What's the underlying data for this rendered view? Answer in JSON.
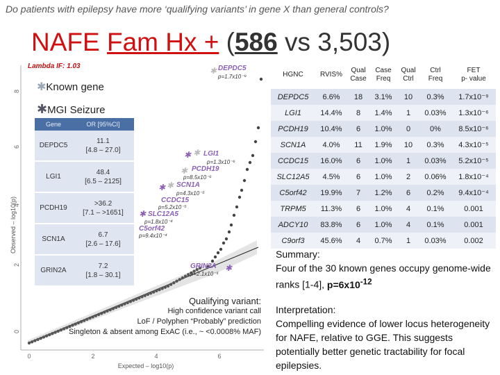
{
  "question": "Do patients with epilepsy have more ‘qualifying variants’ in gene X than general controls?",
  "title": {
    "nafe": "NAFE",
    "famhx": "Fam Hx +",
    "open": " (",
    "n1": "586",
    "vs": " vs 3,503)"
  },
  "plot": {
    "lambda": "Lambda IF: 1.03",
    "xlabel": "Expected – log10(p)",
    "ylabel": "Observed – log10(p)",
    "xticks": [
      "0",
      "2",
      "4",
      "6"
    ],
    "yticks": [
      "0",
      "2",
      "4",
      "6",
      "8"
    ],
    "legend_known": "Known gene",
    "legend_mgi": "MGI Seizure",
    "labels": [
      {
        "gene": "DEPDC5",
        "p": "p=1.7x10⁻⁹"
      },
      {
        "gene": "LGI1",
        "p": "p=1.3x10⁻⁶"
      },
      {
        "gene": "PCDH19",
        "p": "p=8.5x10⁻⁶"
      },
      {
        "gene": "SCN1A",
        "p": "p=4.3x10⁻⁵"
      },
      {
        "gene": "CCDC15",
        "p": "p=5.2x10⁻⁵"
      },
      {
        "gene": "SLC12A5",
        "p": "p=1.8x10⁻⁴"
      },
      {
        "gene": "C5orf42",
        "p": "p=9.4x10⁻⁴"
      },
      {
        "gene": "GRIN2A",
        "p": "p=2.1x10⁻³"
      }
    ]
  },
  "or_table": {
    "headers": [
      "Gene",
      "OR [95%CI]"
    ],
    "rows": [
      {
        "gene": "DEPDC5",
        "or": "11.1",
        "ci": "[4.8 – 27.0]"
      },
      {
        "gene": "LGI1",
        "or": "48.4",
        "ci": "[6.5 – 2125]"
      },
      {
        "gene": "PCDH19",
        "or": ">36.2",
        "ci": "[7.1 – >1651]"
      },
      {
        "gene": "SCN1A",
        "or": "6.7",
        "ci": "[2.6 – 17.6]"
      },
      {
        "gene": "GRIN2A",
        "or": "7.2",
        "ci": "[1.8 – 30.1]"
      }
    ]
  },
  "qualifying": {
    "title": "Qualifying variant:",
    "line1": "High confidence variant call",
    "line2": "LoF / Polyphen “Probably” prediction",
    "line3": "Singleton & absent among ExAC (i.e., ~ <0.0008% MAF)"
  },
  "gene_table": {
    "headers": [
      [
        "HGNC",
        ""
      ],
      [
        "RVIS%",
        ""
      ],
      [
        "Qual",
        "Case"
      ],
      [
        "Case",
        "Freq"
      ],
      [
        "Qual",
        "Ctrl"
      ],
      [
        "Ctrl",
        "Freq"
      ],
      [
        "FET",
        "p- value"
      ]
    ],
    "rows": [
      [
        "DEPDC5",
        "6.6%",
        "18",
        "3.1%",
        "10",
        "0.3%",
        "1.7x10⁻⁹"
      ],
      [
        "LGI1",
        "14.4%",
        "8",
        "1.4%",
        "1",
        "0.03%",
        "1.3x10⁻⁶"
      ],
      [
        "PCDH19",
        "10.4%",
        "6",
        "1.0%",
        "0",
        "0%",
        "8.5x10⁻⁶"
      ],
      [
        "SCN1A",
        "4.0%",
        "11",
        "1.9%",
        "10",
        "0.3%",
        "4.3x10⁻⁵"
      ],
      [
        "CCDC15",
        "16.0%",
        "6",
        "1.0%",
        "1",
        "0.03%",
        "5.2x10⁻⁵"
      ],
      [
        "SLC12A5",
        "4.5%",
        "6",
        "1.0%",
        "2",
        "0.06%",
        "1.8x10⁻⁴"
      ],
      [
        "C5orf42",
        "19.9%",
        "7",
        "1.2%",
        "6",
        "0.2%",
        "9.4x10⁻⁴"
      ],
      [
        "TRPM5",
        "11.3%",
        "6",
        "1.0%",
        "4",
        "0.1%",
        "0.001"
      ],
      [
        "ADCY10",
        "83.8%",
        "6",
        "1.0%",
        "4",
        "0.1%",
        "0.001"
      ],
      [
        "C9orf3",
        "45.6%",
        "4",
        "0.7%",
        "1",
        "0.03%",
        "0.002"
      ]
    ]
  },
  "summary": {
    "title": "Summary:",
    "text": "Four of the 30 known genes occupy genome-wide ranks [1-4], ",
    "p": "p=6x10",
    "exp": "-12"
  },
  "interpretation": {
    "title": "Interpretation:",
    "text": "Compelling evidence of lower locus heterogeneity for NAFE, relative to GGE. This suggests potentially better genetic tractability for focal epilepsies."
  }
}
